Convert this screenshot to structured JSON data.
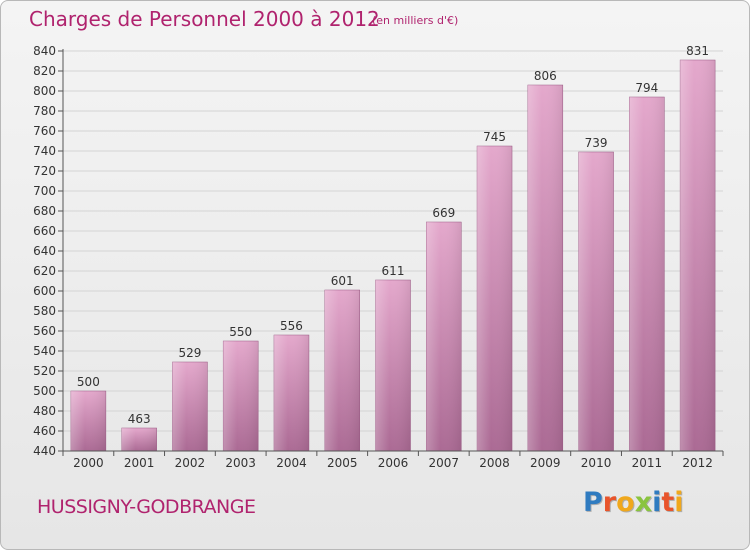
{
  "header": {
    "title": "Charges de Personnel 2000 à 2012",
    "subtitle": "(en milliers d'€)"
  },
  "footer": {
    "commune": "HUSSIGNY-GODBRANGE",
    "logo": "Proxiti",
    "logo_colors": [
      "#2f7bc0",
      "#e8542b",
      "#f0a81c",
      "#8ac43f",
      "#2f7bc0",
      "#e8542b",
      "#f0a81c"
    ]
  },
  "colors": {
    "title": "#b0236e",
    "bar_top": "#e4a8cc",
    "bar_bottom": "#ab6a94",
    "grid": "#d4d4d4",
    "axis": "#555555",
    "label": "#333333"
  },
  "chart_data": {
    "type": "bar",
    "title": "Charges de Personnel 2000 à 2012",
    "subtitle": "(en milliers d'€)",
    "xlabel": "",
    "ylabel": "",
    "ylim": [
      440,
      840
    ],
    "ytick_step": 20,
    "grid": true,
    "categories": [
      "2000",
      "2001",
      "2002",
      "2003",
      "2004",
      "2005",
      "2006",
      "2007",
      "2008",
      "2009",
      "2010",
      "2011",
      "2012"
    ],
    "values": [
      500,
      463,
      529,
      550,
      556,
      601,
      611,
      669,
      745,
      806,
      739,
      794,
      831
    ]
  }
}
